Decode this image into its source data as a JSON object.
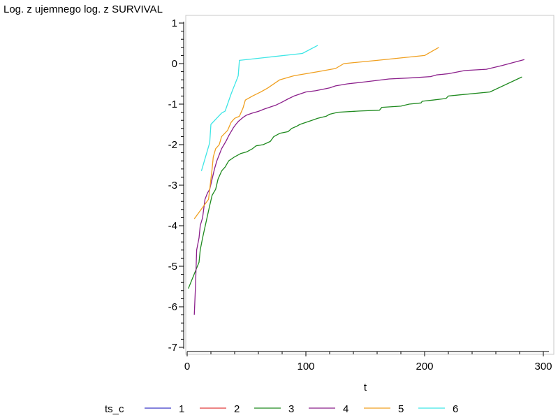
{
  "chart_data": {
    "type": "line",
    "title": "",
    "ylabel": "Log. z ujemnego log. z SURVIVAL",
    "xlabel": "t",
    "xlim": [
      0,
      300
    ],
    "ylim": [
      -7,
      1
    ],
    "xticks": [
      0,
      100,
      200,
      300
    ],
    "yticks": [
      1,
      0,
      -1,
      -2,
      -3,
      -4,
      -5,
      -6,
      -7
    ],
    "grid": false,
    "legend": {
      "title": "ts_c",
      "position": "bottom"
    },
    "series": [
      {
        "name": "1",
        "color": "#3a38c8",
        "points": []
      },
      {
        "name": "2",
        "color": "#e23c3c",
        "points": []
      },
      {
        "name": "3",
        "color": "#1f8a1f",
        "points": [
          [
            1,
            -5.55
          ],
          [
            10,
            -4.9
          ],
          [
            11,
            -4.6
          ],
          [
            13,
            -4.3
          ],
          [
            16,
            -3.9
          ],
          [
            19,
            -3.5
          ],
          [
            21,
            -3.25
          ],
          [
            24,
            -3.1
          ],
          [
            26,
            -2.85
          ],
          [
            29,
            -2.65
          ],
          [
            32,
            -2.55
          ],
          [
            35,
            -2.4
          ],
          [
            40,
            -2.3
          ],
          [
            45,
            -2.22
          ],
          [
            50,
            -2.18
          ],
          [
            55,
            -2.1
          ],
          [
            58,
            -2.03
          ],
          [
            64,
            -2.0
          ],
          [
            70,
            -1.92
          ],
          [
            73,
            -1.8
          ],
          [
            78,
            -1.72
          ],
          [
            85,
            -1.68
          ],
          [
            88,
            -1.6
          ],
          [
            92,
            -1.55
          ],
          [
            95,
            -1.5
          ],
          [
            100,
            -1.45
          ],
          [
            105,
            -1.4
          ],
          [
            110,
            -1.35
          ],
          [
            117,
            -1.3
          ],
          [
            120,
            -1.25
          ],
          [
            127,
            -1.2
          ],
          [
            145,
            -1.17
          ],
          [
            162,
            -1.15
          ],
          [
            164,
            -1.08
          ],
          [
            180,
            -1.05
          ],
          [
            187,
            -1.0
          ],
          [
            197,
            -0.97
          ],
          [
            198,
            -0.93
          ],
          [
            207,
            -0.9
          ],
          [
            218,
            -0.86
          ],
          [
            220,
            -0.8
          ],
          [
            230,
            -0.77
          ],
          [
            255,
            -0.7
          ],
          [
            282,
            -0.33
          ]
        ]
      },
      {
        "name": "4",
        "color": "#8b1f8b",
        "points": [
          [
            6,
            -6.2
          ],
          [
            7,
            -5.5
          ],
          [
            8,
            -4.6
          ],
          [
            10,
            -4.3
          ],
          [
            11,
            -4.0
          ],
          [
            13,
            -3.8
          ],
          [
            15,
            -3.35
          ],
          [
            17,
            -3.2
          ],
          [
            19,
            -3.1
          ],
          [
            21,
            -2.85
          ],
          [
            23,
            -2.6
          ],
          [
            25,
            -2.4
          ],
          [
            27,
            -2.25
          ],
          [
            29,
            -2.1
          ],
          [
            31,
            -2.0
          ],
          [
            33,
            -1.9
          ],
          [
            35,
            -1.78
          ],
          [
            37,
            -1.68
          ],
          [
            39,
            -1.58
          ],
          [
            41,
            -1.5
          ],
          [
            43,
            -1.43
          ],
          [
            45,
            -1.38
          ],
          [
            47,
            -1.33
          ],
          [
            50,
            -1.27
          ],
          [
            55,
            -1.22
          ],
          [
            60,
            -1.18
          ],
          [
            65,
            -1.12
          ],
          [
            70,
            -1.07
          ],
          [
            75,
            -1.02
          ],
          [
            80,
            -0.95
          ],
          [
            85,
            -0.87
          ],
          [
            90,
            -0.8
          ],
          [
            95,
            -0.75
          ],
          [
            100,
            -0.7
          ],
          [
            108,
            -0.67
          ],
          [
            120,
            -0.6
          ],
          [
            125,
            -0.55
          ],
          [
            135,
            -0.5
          ],
          [
            150,
            -0.45
          ],
          [
            170,
            -0.38
          ],
          [
            190,
            -0.35
          ],
          [
            205,
            -0.32
          ],
          [
            210,
            -0.28
          ],
          [
            220,
            -0.25
          ],
          [
            234,
            -0.17
          ],
          [
            252,
            -0.14
          ],
          [
            265,
            -0.05
          ],
          [
            284,
            0.1
          ]
        ]
      },
      {
        "name": "5",
        "color": "#f0a020",
        "points": [
          [
            6,
            -3.83
          ],
          [
            18,
            -3.35
          ],
          [
            21,
            -2.6
          ],
          [
            22,
            -2.3
          ],
          [
            24,
            -2.1
          ],
          [
            27,
            -2.0
          ],
          [
            29,
            -1.8
          ],
          [
            34,
            -1.65
          ],
          [
            37,
            -1.45
          ],
          [
            40,
            -1.35
          ],
          [
            44,
            -1.3
          ],
          [
            47,
            -1.1
          ],
          [
            49,
            -0.9
          ],
          [
            55,
            -0.8
          ],
          [
            62,
            -0.7
          ],
          [
            68,
            -0.6
          ],
          [
            74,
            -0.48
          ],
          [
            78,
            -0.4
          ],
          [
            90,
            -0.3
          ],
          [
            110,
            -0.2
          ],
          [
            125,
            -0.12
          ],
          [
            132,
            0.0
          ],
          [
            160,
            0.08
          ],
          [
            200,
            0.2
          ],
          [
            212,
            0.4
          ]
        ]
      },
      {
        "name": "6",
        "color": "#3ee6e6",
        "points": [
          [
            12,
            -2.65
          ],
          [
            19,
            -1.95
          ],
          [
            20,
            -1.5
          ],
          [
            29,
            -1.22
          ],
          [
            32,
            -1.17
          ],
          [
            37,
            -0.75
          ],
          [
            39,
            -0.6
          ],
          [
            42,
            -0.38
          ],
          [
            43,
            -0.3
          ],
          [
            44,
            0.08
          ],
          [
            97,
            0.25
          ],
          [
            110,
            0.45
          ]
        ]
      }
    ]
  }
}
